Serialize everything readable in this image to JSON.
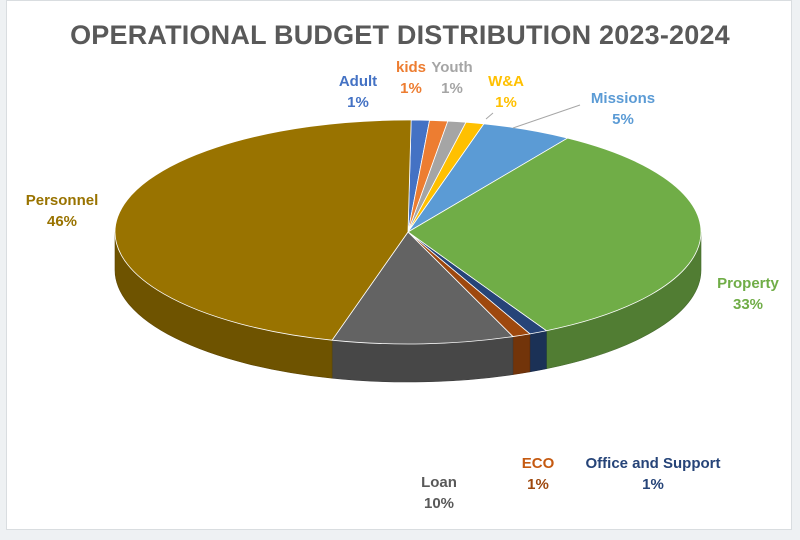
{
  "chart_data": {
    "type": "pie",
    "title": "OPERATIONAL BUDGET DISTRIBUTION 2023-2024",
    "slices": [
      {
        "label": "Adult",
        "value": 1,
        "display": "1%",
        "color": "#4472c4"
      },
      {
        "label": "kids",
        "value": 1,
        "display": "1%",
        "color": "#ed7d31"
      },
      {
        "label": "Youth",
        "value": 1,
        "display": "1%",
        "color": "#a5a5a5"
      },
      {
        "label": "W&A",
        "value": 1,
        "display": "1%",
        "color": "#ffc000"
      },
      {
        "label": "Missions",
        "value": 5,
        "display": "5%",
        "color": "#5b9bd5"
      },
      {
        "label": "Property",
        "value": 33,
        "display": "33%",
        "color": "#70ad47"
      },
      {
        "label": "Office and Support",
        "value": 1,
        "display": "1%",
        "color": "#264478"
      },
      {
        "label": "ECO",
        "value": 1,
        "display": "1%",
        "color": "#9e480e"
      },
      {
        "label": "Loan",
        "value": 10,
        "display": "10%",
        "color": "#636363"
      },
      {
        "label": "Personnel",
        "value": 46,
        "display": "46%",
        "color": "#997300"
      }
    ],
    "style": "3d",
    "legend": "none"
  }
}
